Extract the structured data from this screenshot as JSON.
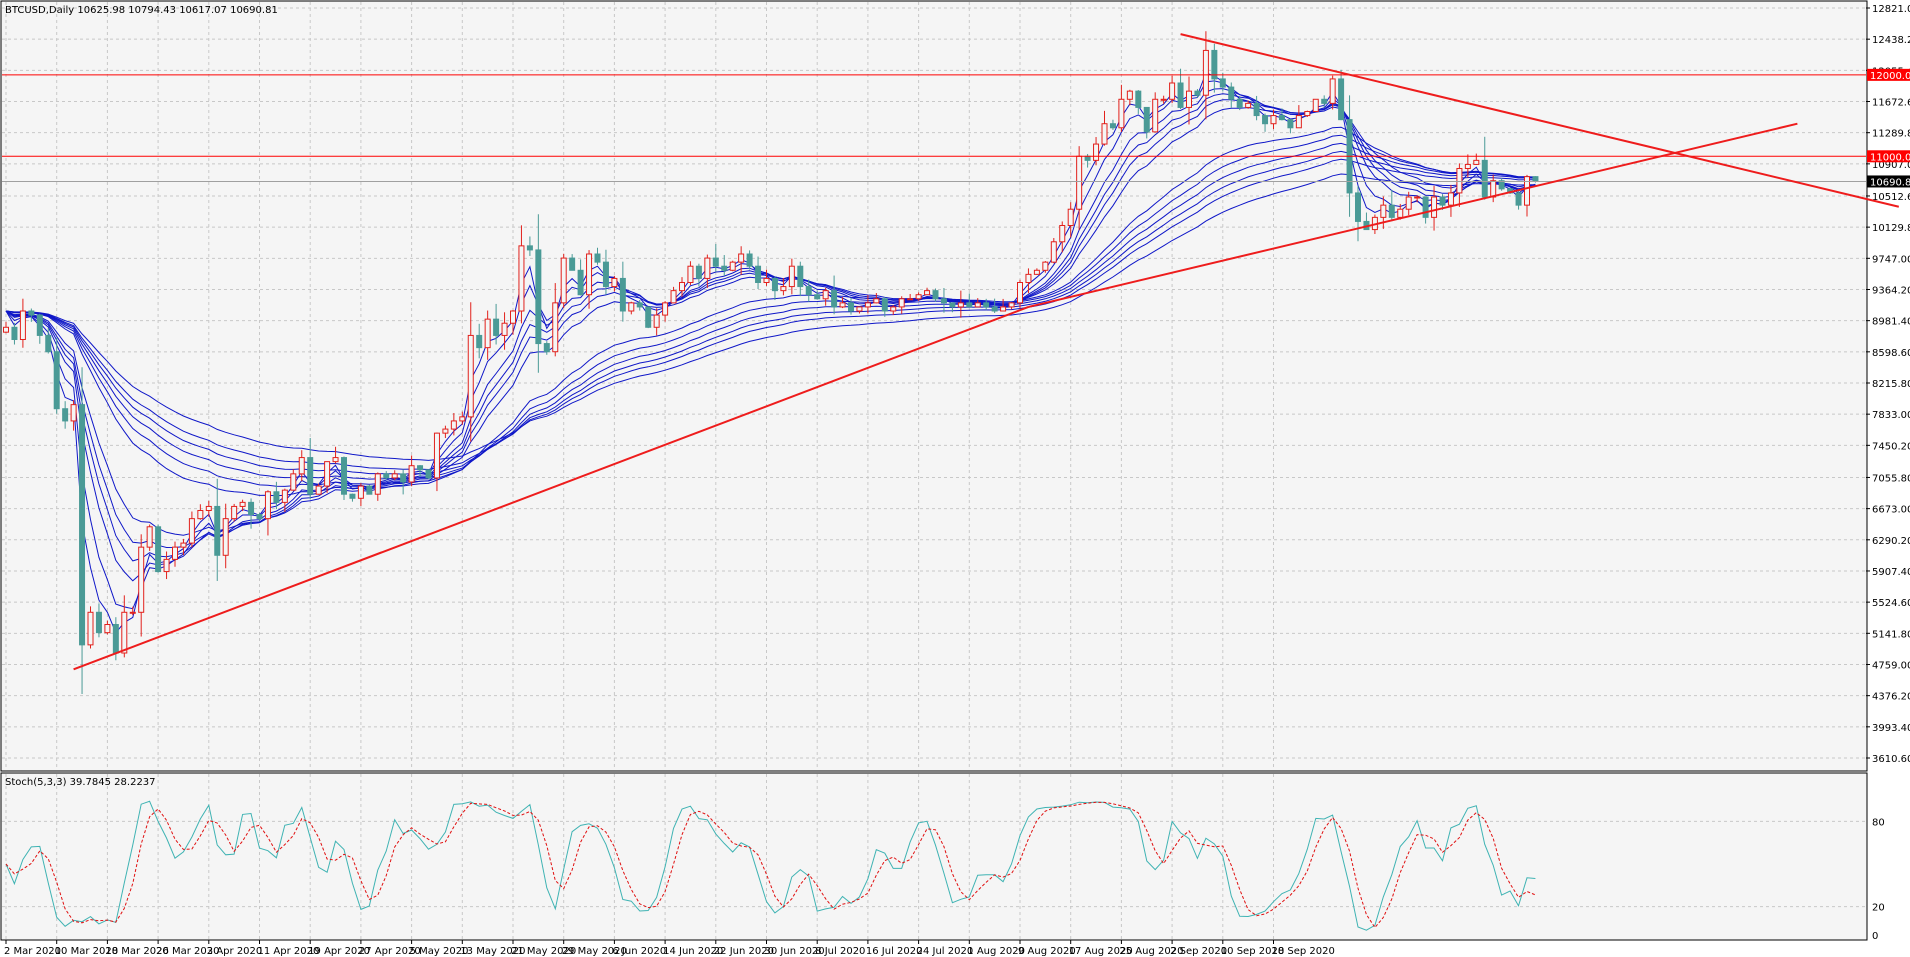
{
  "chart_data": [
    {
      "type": "candlestick",
      "title": "BTCUSD,Daily",
      "ohlc_text": "10625.98 10794.43 10617.07 10690.81",
      "last_price": 10690.81,
      "y_ticks": [
        "12821.00",
        "12438.20",
        "12055.40",
        "11672.60",
        "11289.80",
        "10907.00",
        "10512.60",
        "10129.80",
        "9747.00",
        "9364.20",
        "8981.40",
        "8598.60",
        "8215.80",
        "7833.00",
        "7450.20",
        "7055.80",
        "6673.00",
        "6290.20",
        "5907.40",
        "5524.60",
        "5141.80",
        "4759.00",
        "4376.20",
        "3993.40",
        "3610.60"
      ],
      "ylim": [
        3610.6,
        12821.0
      ],
      "x_labels": [
        "2 Mar 2020",
        "10 Mar 2020",
        "18 Mar 2020",
        "26 Mar 2020",
        "3 Apr 2020",
        "11 Apr 2020",
        "19 Apr 2020",
        "27 Apr 2020",
        "5 May 2020",
        "13 May 2020",
        "21 May 2020",
        "29 May 2020",
        "6 Jun 2020",
        "14 Jun 2020",
        "22 Jun 2020",
        "30 Jun 2020",
        "8 Jul 2020",
        "16 Jul 2020",
        "24 Jul 2020",
        "1 Aug 2020",
        "9 Aug 2020",
        "17 Aug 2020",
        "25 Aug 2020",
        "2 Sep 2020",
        "10 Sep 2020",
        "18 Sep 2020"
      ],
      "horizontal_levels": [
        {
          "value": 12000.0,
          "label": "12000.00",
          "color": "#ff0000"
        },
        {
          "value": 11000.0,
          "label": "11000.00",
          "color": "#ff0000"
        }
      ],
      "trendlines": [
        {
          "from": {
            "day": 8,
            "price": 4700
          },
          "to": {
            "day": 121,
            "price": 9150
          }
        },
        {
          "from": {
            "day": 121,
            "price": 9150
          },
          "to": {
            "day": 212,
            "price": 11400
          }
        },
        {
          "from": {
            "day": 139,
            "price": 12500
          },
          "to": {
            "day": 224,
            "price": 10380
          }
        }
      ],
      "closes": [
        8900,
        8750,
        9100,
        9050,
        8800,
        8600,
        7900,
        7750,
        7950,
        5000,
        5400,
        5150,
        5250,
        4900,
        5400,
        5400,
        6200,
        6450,
        5900,
        6050,
        6200,
        6250,
        6550,
        6650,
        6700,
        6100,
        6550,
        6700,
        6750,
        6600,
        6550,
        6880,
        6750,
        6900,
        7100,
        7300,
        6850,
        6950,
        7250,
        7300,
        6850,
        6800,
        6950,
        6850,
        7100,
        7050,
        7100,
        7000,
        7200,
        7150,
        7050,
        7600,
        7650,
        7750,
        7800,
        8800,
        8650,
        9000,
        8800,
        8950,
        9100,
        9900,
        9850,
        8700,
        8600,
        9200,
        9750,
        9600,
        9300,
        9800,
        9700,
        9400,
        9500,
        9100,
        9200,
        9150,
        8900,
        9050,
        9200,
        9350,
        9450,
        9650,
        9500,
        9750,
        9650,
        9600,
        9700,
        9800,
        9650,
        9450,
        9500,
        9350,
        9400,
        9650,
        9400,
        9300,
        9250,
        9350,
        9150,
        9200,
        9100,
        9150,
        9200,
        9250,
        9100,
        9150,
        9250,
        9250,
        9300,
        9350,
        9250,
        9200,
        9150,
        9200,
        9150,
        9200,
        9150,
        9100,
        9150,
        9200,
        9450,
        9550,
        9600,
        9700,
        9950,
        10150,
        10350,
        11000,
        10950,
        11150,
        11400,
        11350,
        11700,
        11800,
        11600,
        11300,
        11700,
        11700,
        11900,
        11600,
        11800,
        11750,
        12300,
        11950,
        11850,
        11700,
        11600,
        11650,
        11500,
        11400,
        11500,
        11450,
        11350,
        11500,
        11550,
        11700,
        11650,
        11950,
        11450,
        10550,
        10200,
        10100,
        10250,
        10400,
        10250,
        10350,
        10500,
        10500,
        10250,
        10500,
        10400,
        10550,
        10850,
        10900,
        10950,
        10500,
        10700,
        10600,
        10550,
        10400,
        10750,
        10690.81
      ],
      "ema_periods": [
        3,
        5,
        8,
        10,
        12,
        15,
        30,
        35,
        40,
        45,
        50,
        60
      ],
      "stochastic": {
        "label": "Stoch(5,3,3) 39.7845 28.2237",
        "k": 39.7845,
        "d": 28.2237,
        "ylim": [
          0,
          100
        ],
        "levels": [
          "80",
          "20",
          "0"
        ]
      }
    }
  ]
}
